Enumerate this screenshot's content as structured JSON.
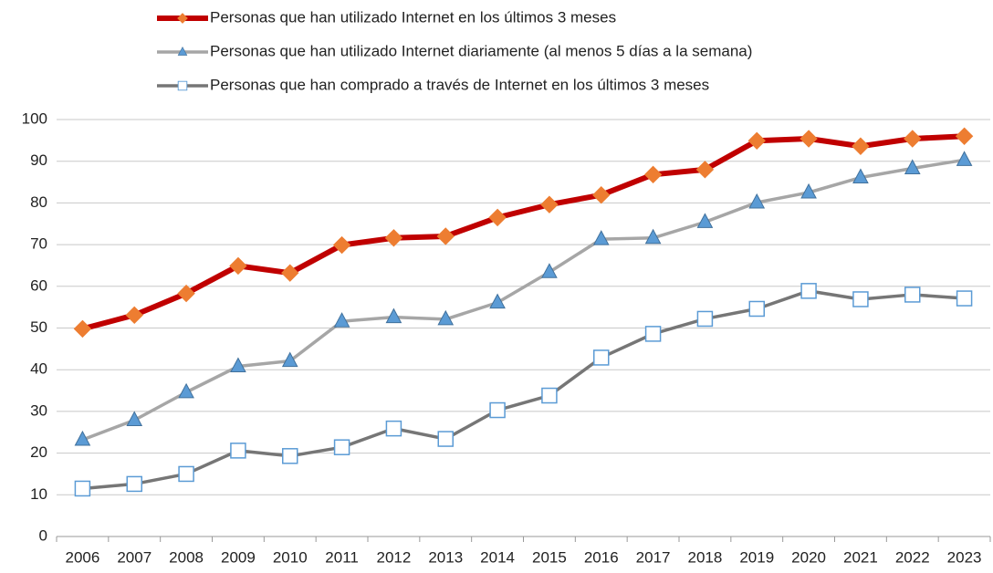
{
  "chart_data": {
    "type": "line",
    "categories": [
      "2006",
      "2007",
      "2008",
      "2009",
      "2010",
      "2011",
      "2012",
      "2013",
      "2014",
      "2015",
      "2016",
      "2017",
      "2018",
      "2019",
      "2020",
      "2021",
      "2022",
      "2023"
    ],
    "series": [
      {
        "name": "Personas que han utilizado Internet en los últimos 3 meses",
        "color": "#c00000",
        "marker": "diamond",
        "marker_color": "#ed7d31",
        "marker_edge": "#ed7d31",
        "values": [
          49.8,
          53.1,
          58.3,
          64.9,
          63.2,
          69.9,
          71.6,
          72.0,
          76.5,
          79.6,
          81.9,
          86.8,
          88.0,
          94.9,
          95.4,
          93.6,
          95.4,
          96.0
        ]
      },
      {
        "name": "Personas que han utilizado Internet diariamente (al menos 5 días a la semana)",
        "color": "#a6a6a6",
        "marker": "triangle",
        "marker_color": "#5b9bd5",
        "marker_edge": "#41719c",
        "values": [
          23.2,
          27.9,
          34.6,
          40.8,
          42.1,
          51.6,
          52.6,
          52.1,
          56.1,
          63.4,
          71.3,
          71.6,
          75.4,
          80.1,
          82.5,
          86.1,
          88.3,
          90.3
        ]
      },
      {
        "name": "Personas que han comprado a través de Internet en los últimos 3 meses",
        "color": "#767676",
        "marker": "square",
        "marker_color": "#ffffff",
        "marker_edge": "#5b9bd5",
        "values": [
          11.5,
          12.6,
          15.0,
          20.6,
          19.3,
          21.4,
          25.9,
          23.4,
          30.3,
          33.8,
          42.9,
          48.6,
          52.2,
          54.6,
          58.9,
          56.9,
          58.0,
          57.1
        ]
      }
    ],
    "ylim": [
      0,
      100
    ],
    "yticks": [
      0,
      10,
      20,
      30,
      40,
      50,
      60,
      70,
      80,
      90,
      100
    ],
    "grid": true
  }
}
